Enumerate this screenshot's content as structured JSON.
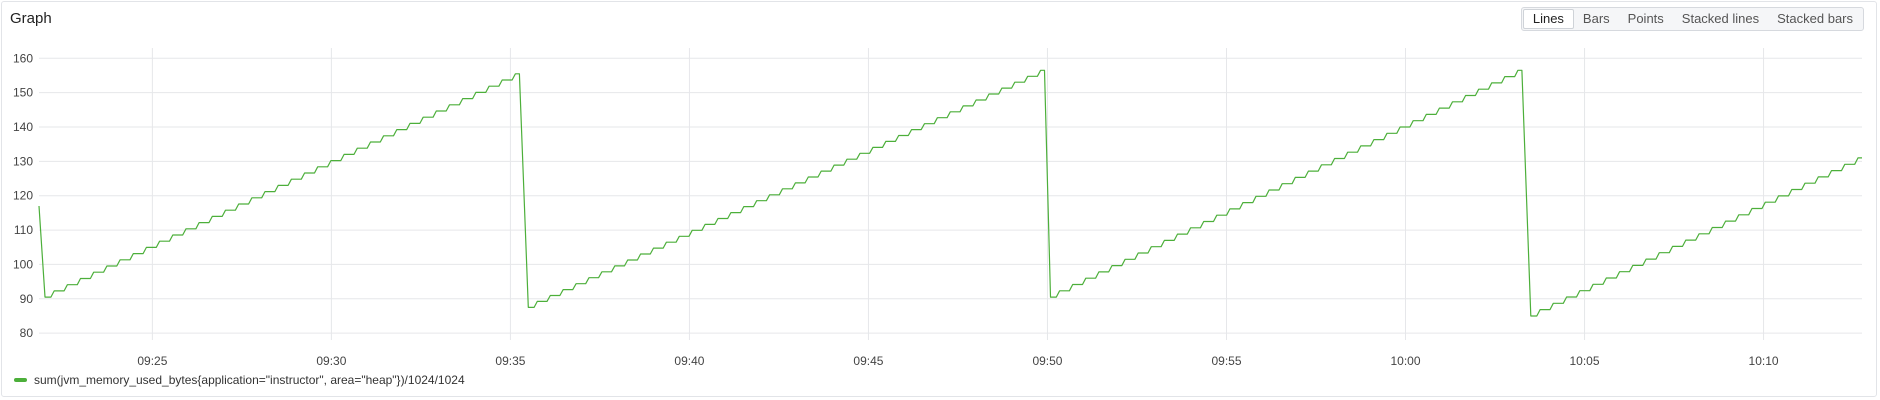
{
  "panel": {
    "title": "Graph"
  },
  "toolbar": {
    "modes": [
      "Lines",
      "Bars",
      "Points",
      "Stacked lines",
      "Stacked bars"
    ],
    "active": "Lines"
  },
  "colors": {
    "series": "#4caf3a",
    "grid": "#e6e7ea"
  },
  "legend": [
    {
      "label": "sum(jvm_memory_used_bytes{application=\"instructor\", area=\"heap\"})/1024/1024",
      "color": "#4caf3a"
    }
  ],
  "chart_data": {
    "type": "line",
    "title": "",
    "xlabel": "",
    "ylabel": "",
    "xlim": [
      "09:21:50",
      "10:12:45"
    ],
    "ylim": [
      78,
      163
    ],
    "x_ticks": [
      "09:25",
      "09:30",
      "09:35",
      "09:40",
      "09:45",
      "09:50",
      "09:55",
      "10:00",
      "10:05",
      "10:10"
    ],
    "y_ticks": [
      80,
      90,
      100,
      110,
      120,
      130,
      140,
      150,
      160
    ],
    "grid": true,
    "legend_position": "bottom-left",
    "series": [
      {
        "name": "sum(jvm_memory_used_bytes{application=\"instructor\", area=\"heap\"})/1024/1024",
        "color": "#4caf3a",
        "points": [
          [
            "09:21:50",
            117
          ],
          [
            "09:22:00",
            90.5
          ],
          [
            "09:35:15",
            155.5
          ],
          [
            "09:35:30",
            87.5
          ],
          [
            "09:49:55",
            156.5
          ],
          [
            "09:50:05",
            90.5
          ],
          [
            "10:03:15",
            156.5
          ],
          [
            "10:03:30",
            85
          ],
          [
            "10:12:45",
            131
          ]
        ]
      }
    ]
  }
}
